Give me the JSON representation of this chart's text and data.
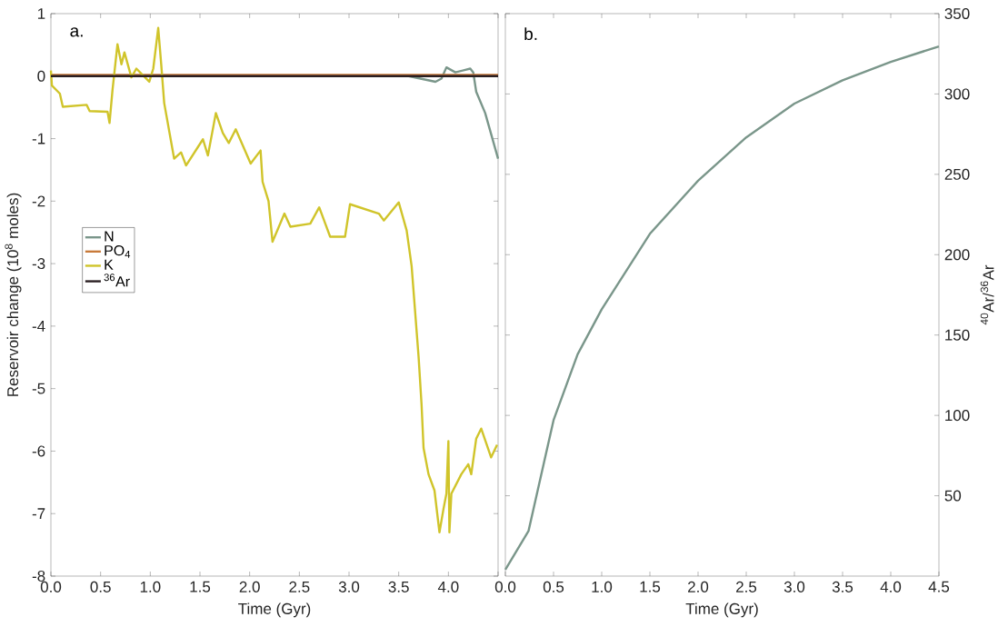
{
  "chart_data": [
    {
      "type": "line",
      "title": "a.",
      "xlabel": "Time (Gyr)",
      "ylabel": "Reservoir change (10$^{8}$ moles)",
      "xlim": [
        0,
        4.5
      ],
      "ylim": [
        -8,
        1
      ],
      "xticks": [
        {
          "value": 0,
          "label": "0.0"
        },
        {
          "value": 0.5,
          "label": "0.5"
        },
        {
          "value": 1,
          "label": "1.0"
        },
        {
          "value": 1.5,
          "label": "1.5"
        },
        {
          "value": 2,
          "label": "2.0"
        },
        {
          "value": 2.5,
          "label": "2.5"
        },
        {
          "value": 3,
          "label": "3.0"
        },
        {
          "value": 3.5,
          "label": "3.5"
        },
        {
          "value": 4,
          "label": "4.0"
        },
        {
          "value": 4.5,
          "label": null
        }
      ],
      "yticks": [
        1,
        0,
        -1,
        -2,
        -3,
        -4,
        -5,
        -6,
        -7,
        -8
      ],
      "legend": "left",
      "series": [
        {
          "name": "N",
          "color": "#7a968a",
          "x": [
            3.6,
            3.87,
            3.93,
            3.98,
            4.07,
            4.22,
            4.25,
            4.28,
            4.37,
            4.5
          ],
          "values": [
            0,
            -0.09,
            -0.04,
            0.14,
            0.06,
            0.12,
            0.06,
            -0.25,
            -0.59,
            -1.32
          ]
        },
        {
          "name": "PO$_{4}$",
          "color": "#c87a3a",
          "x": [
            0,
            4.5
          ],
          "values": [
            0.02,
            0.02
          ]
        },
        {
          "name": "K",
          "color": "#d0c42a",
          "x": [
            0,
            0.01,
            0.09,
            0.12,
            0.36,
            0.39,
            0.57,
            0.59,
            0.62,
            0.67,
            0.71,
            0.74,
            0.81,
            0.86,
            0.99,
            1.03,
            1.08,
            1.11,
            1.14,
            1.24,
            1.31,
            1.36,
            1.53,
            1.58,
            1.66,
            1.73,
            1.79,
            1.86,
            2.01,
            2.11,
            2.13,
            2.19,
            2.23,
            2.35,
            2.41,
            2.61,
            2.7,
            2.81,
            2.96,
            3.01,
            3.3,
            3.35,
            3.5,
            3.58,
            3.63,
            3.7,
            3.73,
            3.75,
            3.8,
            3.86,
            3.91,
            3.95,
            3.98,
            4.0,
            4.01,
            4.03,
            4.13,
            4.2,
            4.23,
            4.28,
            4.33,
            4.43,
            4.49
          ],
          "values": [
            0.09,
            -0.15,
            -0.28,
            -0.49,
            -0.46,
            -0.56,
            -0.57,
            -0.75,
            -0.22,
            0.51,
            0.19,
            0.38,
            -0.02,
            0.12,
            -0.09,
            0.12,
            0.77,
            0.19,
            -0.43,
            -1.32,
            -1.22,
            -1.43,
            -1.01,
            -1.27,
            -0.59,
            -0.91,
            -1.07,
            -0.85,
            -1.4,
            -1.19,
            -1.69,
            -2.0,
            -2.65,
            -2.2,
            -2.41,
            -2.36,
            -2.1,
            -2.57,
            -2.57,
            -2.05,
            -2.2,
            -2.31,
            -2.02,
            -2.47,
            -3.04,
            -4.49,
            -5.26,
            -5.95,
            -6.37,
            -6.63,
            -7.3,
            -6.93,
            -6.68,
            -5.84,
            -7.3,
            -6.68,
            -6.37,
            -6.21,
            -6.37,
            -5.8,
            -5.64,
            -6.1,
            -5.9
          ]
        },
        {
          "name": "$^{36}$Ar",
          "color": "#2a1f22",
          "x": [
            0,
            4.5
          ],
          "values": [
            0,
            0
          ]
        }
      ]
    },
    {
      "type": "line",
      "title": "b.",
      "xlabel": "Time (Gyr)",
      "y2label": "$^{40}$Ar/$^{36}$Ar",
      "xlim": [
        0,
        4.5
      ],
      "y2lim": [
        0,
        350
      ],
      "xticks": [
        {
          "value": 0,
          "label": "0.0"
        },
        {
          "value": 0.5,
          "label": "0.5"
        },
        {
          "value": 1,
          "label": "1.0"
        },
        {
          "value": 1.5,
          "label": "1.5"
        },
        {
          "value": 2,
          "label": "2.0"
        },
        {
          "value": 2.5,
          "label": "2.5"
        },
        {
          "value": 3,
          "label": "3.0"
        },
        {
          "value": 3.5,
          "label": "3.5"
        },
        {
          "value": 4,
          "label": "4.0"
        },
        {
          "value": 4.5,
          "label": "4.5"
        }
      ],
      "y2ticks": [
        50,
        100,
        150,
        200,
        250,
        300,
        350
      ],
      "series": [
        {
          "color": "#7a968a",
          "axis": "y2",
          "x": [
            0,
            0.24,
            0.5,
            0.75,
            1.0,
            1.5,
            2.0,
            2.5,
            3.0,
            3.5,
            4.0,
            4.5
          ],
          "values": [
            4,
            28,
            97,
            138,
            166,
            213,
            246,
            273,
            294,
            308.5,
            320,
            329.6
          ]
        }
      ]
    }
  ]
}
